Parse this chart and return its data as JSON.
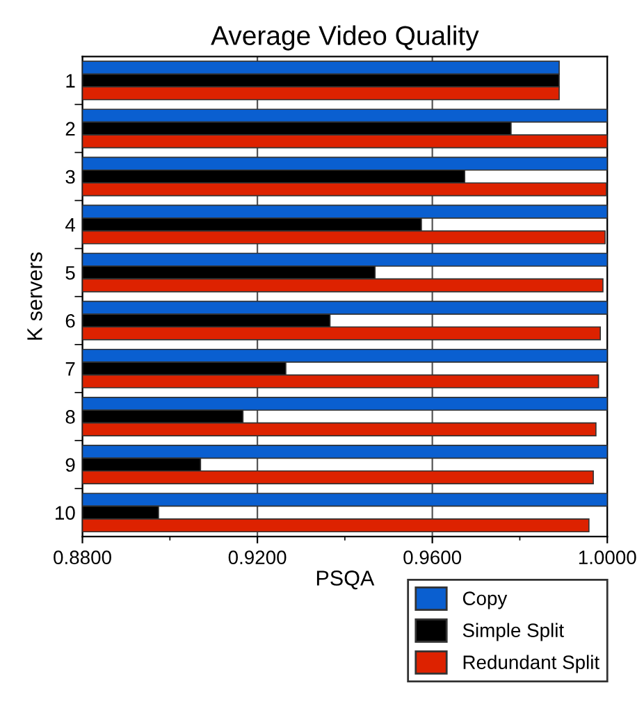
{
  "chart_data": {
    "type": "bar",
    "orientation": "horizontal",
    "title": "Average Video Quality",
    "xlabel": "PSQA",
    "ylabel": "K servers",
    "categories": [
      "1",
      "2",
      "3",
      "4",
      "5",
      "6",
      "7",
      "8",
      "9",
      "10"
    ],
    "series": [
      {
        "name": "Copy",
        "color": "#0a5fd0",
        "values": [
          0.989,
          1.0,
          1.0,
          1.0,
          1.0,
          1.0,
          1.0,
          1.0,
          1.0,
          1.0
        ]
      },
      {
        "name": "Simple Split",
        "color": "#000000",
        "values": [
          0.989,
          0.978,
          0.9674,
          0.9575,
          0.9469,
          0.9366,
          0.9265,
          0.9167,
          0.907,
          0.8974
        ]
      },
      {
        "name": "Redundant Split",
        "color": "#dd2200",
        "values": [
          0.989,
          1.0,
          0.9998,
          0.9995,
          0.999,
          0.9984,
          0.998,
          0.9974,
          0.9968,
          0.9958
        ]
      }
    ],
    "xlim": [
      0.88,
      1.0
    ],
    "xticks": [
      {
        "value": 0.88,
        "label": "0.8800"
      },
      {
        "value": 0.9,
        "label": null
      },
      {
        "value": 0.92,
        "label": "0.9200"
      },
      {
        "value": 0.94,
        "label": null
      },
      {
        "value": 0.96,
        "label": "0.9600"
      },
      {
        "value": 0.98,
        "label": null
      },
      {
        "value": 1.0,
        "label": "1.0000"
      }
    ],
    "grid": "x",
    "legend": "bottom right"
  }
}
